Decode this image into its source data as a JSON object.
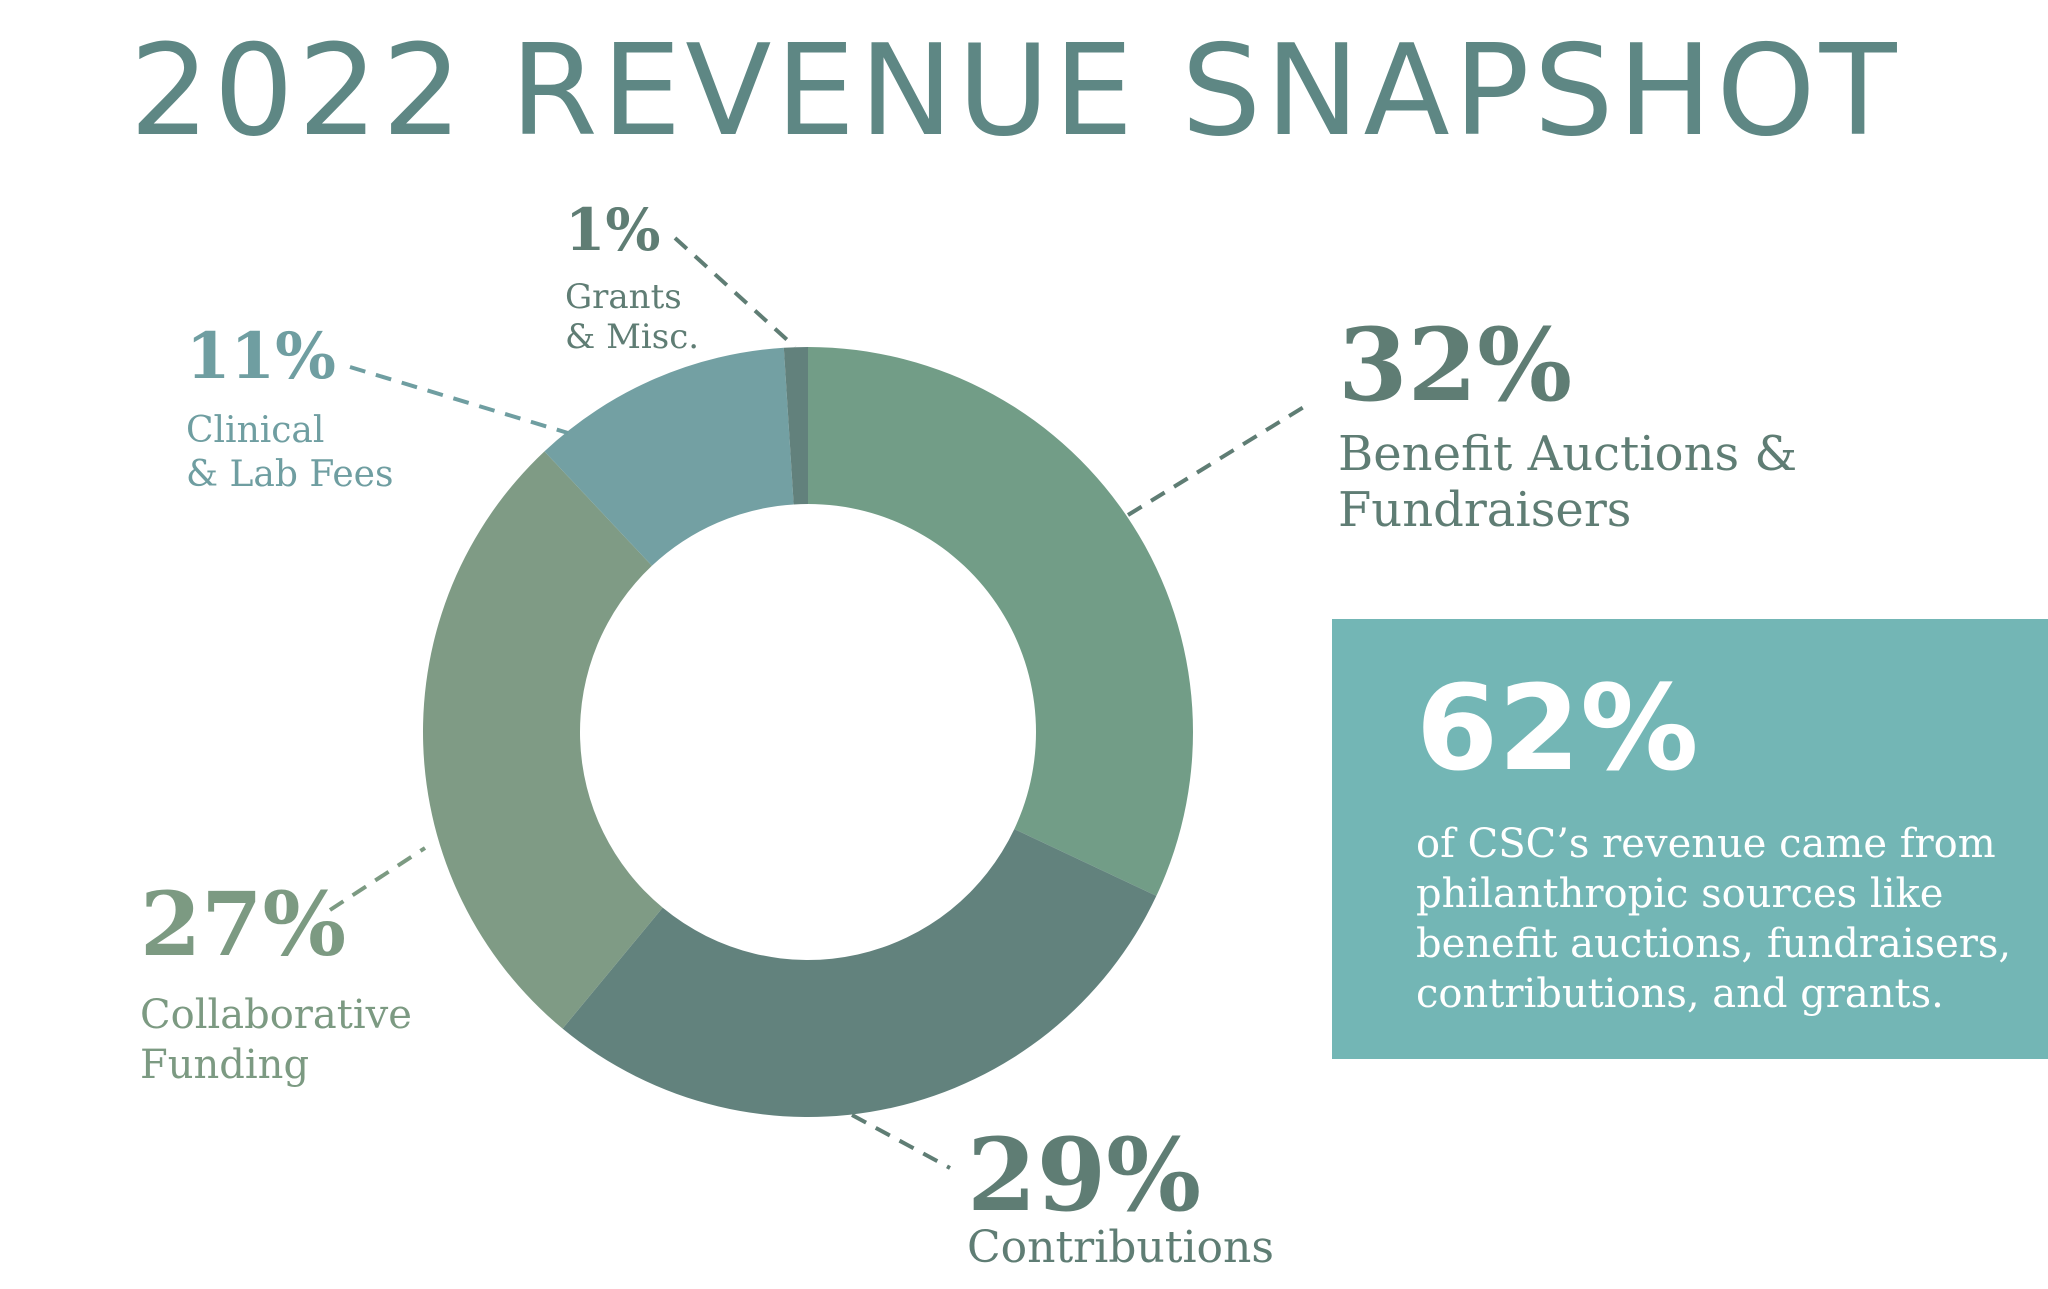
{
  "title": "2022 REVENUE SNAPSHOT",
  "chart_data": {
    "type": "pie",
    "variant": "donut",
    "title": "2022 REVENUE SNAPSHOT",
    "slices": [
      {
        "label": "Benefit Auctions & Fundraisers",
        "label_lines": [
          "Benefit Auctions &",
          "Fundraisers"
        ],
        "value": 32,
        "value_label": "32%",
        "color": "#729d87",
        "label_color": "#5f7d74"
      },
      {
        "label": "Contributions",
        "label_lines": [
          "Contributions"
        ],
        "value": 29,
        "value_label": "29%",
        "color": "#62827d",
        "label_color": "#5f7d74"
      },
      {
        "label": "Collaborative Funding",
        "label_lines": [
          "Collaborative",
          "Funding"
        ],
        "value": 27,
        "value_label": "27%",
        "color": "#7f9b85",
        "label_color": "#7c9a82"
      },
      {
        "label": "Clinical & Lab Fees",
        "label_lines": [
          "Clinical",
          "& Lab Fees"
        ],
        "value": 11,
        "value_label": "11%",
        "color": "#73a0a3",
        "label_color": "#6f9ea1"
      },
      {
        "label": "Grants & Misc.",
        "label_lines": [
          "Grants",
          "& Misc."
        ],
        "value": 1,
        "value_label": "1%",
        "color": "#62817c",
        "label_color": "#5f7d74"
      }
    ]
  },
  "callout": {
    "value": "62%",
    "text": "of CSC’s revenue came from philanthropic sources like benefit auctions, fundraisers, contributions, and grants.",
    "background": "#73b6b5"
  }
}
